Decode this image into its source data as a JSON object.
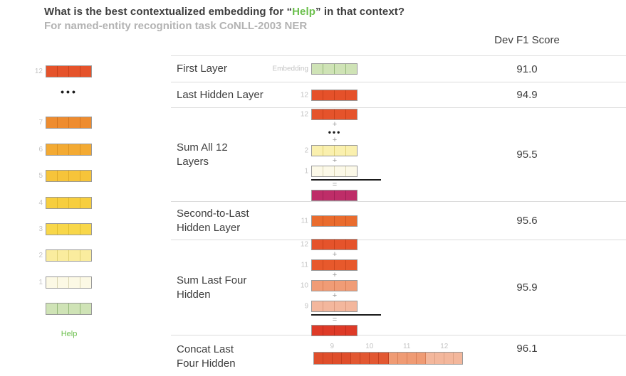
{
  "title": {
    "before": "What is the best contextualized embedding for “",
    "word": "Help",
    "after": "” in that context?"
  },
  "subtitle": "For named-entity recognition task CoNLL-2003 NER",
  "score_header": "Dev F1 Score",
  "colors": {
    "highlight_green": "#6abf4b",
    "text_dark": "#3e3e3e",
    "text_gray": "#b3b3b3",
    "label_gray": "#c4c4c4",
    "separator": "#dcdcdc",
    "sum_line_black": "#1a1a1a",
    "magenta_result": "#BE2D68",
    "red_result": "#DE3A27"
  },
  "left_column": {
    "word": "Help",
    "bars": [
      {
        "label": "12",
        "fill": "#E5532B",
        "sep": "#C8401A"
      },
      {
        "type": "dots"
      },
      {
        "label": "7",
        "fill": "#EE8C2F",
        "sep": "#D4751F"
      },
      {
        "label": "6",
        "fill": "#F3AA33",
        "sep": "#DB9222"
      },
      {
        "label": "5",
        "fill": "#F6C43A",
        "sep": "#DFA928"
      },
      {
        "label": "4",
        "fill": "#F7CE3E",
        "sep": "#E0B62A"
      },
      {
        "label": "3",
        "fill": "#F8D74A",
        "sep": "#E0C030"
      },
      {
        "label": "2",
        "fill": "#FAEC9E",
        "sep": "#DFD075"
      },
      {
        "label": "1",
        "fill": "#FCF9E5",
        "sep": "#D9D4B2"
      },
      {
        "label": "",
        "fill": "#CFE3B6",
        "sep": "#94B878"
      }
    ]
  },
  "rows": [
    {
      "name_lines": [
        "First Layer"
      ],
      "score": "91.0",
      "viz": {
        "type": "single",
        "label": "Embedding",
        "fill": "#CFE3B6",
        "sep": "#94B878"
      }
    },
    {
      "name_lines": [
        "Last Hidden Layer"
      ],
      "score": "94.9",
      "viz": {
        "type": "single",
        "label": "12",
        "fill": "#E5512A",
        "sep": "#C8401A"
      }
    },
    {
      "name_lines": [
        "Sum All 12",
        "Layers"
      ],
      "score": "95.5",
      "viz": {
        "type": "sum",
        "elements": [
          {
            "kind": "bar",
            "label": "12",
            "fill": "#E5532B",
            "sep": "#C8401A"
          },
          {
            "kind": "plus"
          },
          {
            "kind": "dots"
          },
          {
            "kind": "plus"
          },
          {
            "kind": "bar",
            "label": "2",
            "fill": "#FAF0AE",
            "sep": "#DFD075"
          },
          {
            "kind": "plus"
          },
          {
            "kind": "bar",
            "label": "1",
            "fill": "#FCF9E8",
            "sep": "#D9D4B2"
          },
          {
            "kind": "line"
          },
          {
            "kind": "equals"
          },
          {
            "kind": "bar",
            "label": "",
            "fill": "#BE2D68",
            "sep": "#A02055"
          }
        ]
      }
    },
    {
      "name_lines": [
        "Second-to-Last",
        "Hidden Layer"
      ],
      "score": "95.6",
      "viz": {
        "type": "single",
        "label": "11",
        "fill": "#E96C2E",
        "sep": "#CC5420"
      }
    },
    {
      "name_lines": [
        "Sum Last Four",
        "Hidden"
      ],
      "score": "95.9",
      "viz": {
        "type": "sum",
        "elements": [
          {
            "kind": "bar",
            "label": "12",
            "fill": "#E5532B",
            "sep": "#C8401A"
          },
          {
            "kind": "plus"
          },
          {
            "kind": "bar",
            "label": "11",
            "fill": "#E7592C",
            "sep": "#CC461D"
          },
          {
            "kind": "plus"
          },
          {
            "kind": "bar",
            "label": "10",
            "fill": "#F09C76",
            "sep": "#D87F57"
          },
          {
            "kind": "plus"
          },
          {
            "kind": "bar",
            "label": "9",
            "fill": "#F3B79D",
            "sep": "#DC9B7F"
          },
          {
            "kind": "line"
          },
          {
            "kind": "equals"
          },
          {
            "kind": "bar",
            "label": "",
            "fill": "#DE3A27",
            "sep": "#C02C1B"
          }
        ]
      }
    },
    {
      "name_lines": [
        "Concat Last",
        "Four Hidden"
      ],
      "score": "96.1",
      "viz": {
        "type": "concat",
        "groups": [
          {
            "label": "9",
            "fill": "#DF4E2B",
            "sep": "#C43F1E"
          },
          {
            "label": "10",
            "fill": "#E25832",
            "sep": "#C43F1E"
          },
          {
            "label": "11",
            "fill": "#EF9B74",
            "sep": "#D87F57"
          },
          {
            "label": "12",
            "fill": "#F3B79C",
            "sep": "#DCA083"
          }
        ]
      }
    }
  ],
  "chart_data": {
    "type": "table",
    "title": "Dev F1 Score",
    "categories": [
      "First Layer",
      "Last Hidden Layer",
      "Sum All 12 Layers",
      "Second-to-Last Hidden Layer",
      "Sum Last Four Hidden",
      "Concat Last Four Hidden"
    ],
    "values": [
      91.0,
      94.9,
      95.5,
      95.6,
      95.9,
      96.1
    ]
  }
}
